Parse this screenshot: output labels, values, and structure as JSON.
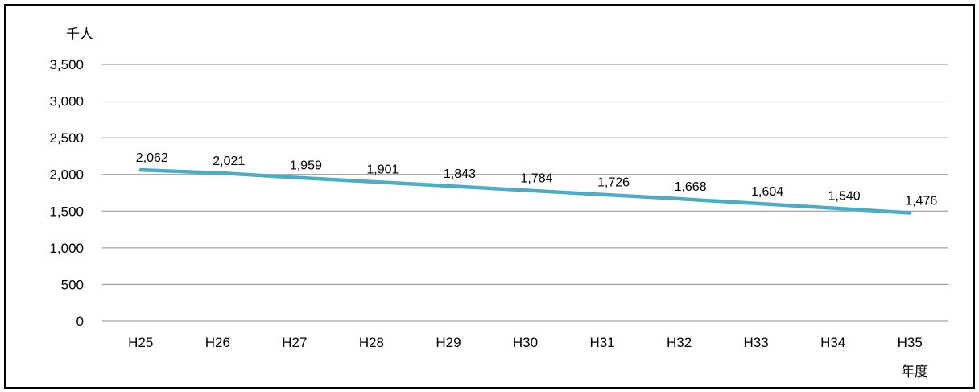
{
  "chart_data": {
    "type": "line",
    "categories": [
      "H25",
      "H26",
      "H27",
      "H28",
      "H29",
      "H30",
      "H31",
      "H32",
      "H33",
      "H34",
      "H35"
    ],
    "series": [
      {
        "values": [
          2062,
          2021,
          1959,
          1901,
          1843,
          1784,
          1726,
          1668,
          1604,
          1540,
          1476
        ],
        "data_labels": [
          "2,062",
          "2,021",
          "1,959",
          "1,901",
          "1,843",
          "1,784",
          "1,726",
          "1,668",
          "1,604",
          "1,540",
          "1,476"
        ],
        "color": "#4BACC6"
      }
    ],
    "ylim": [
      0,
      3500
    ],
    "y_ticks": [
      0,
      500,
      1000,
      1500,
      2000,
      2500,
      3000,
      3500
    ],
    "y_tick_labels": [
      "0",
      "500",
      "1,000",
      "1,500",
      "2,000",
      "2,500",
      "3,000",
      "3,500"
    ],
    "y_unit": "千人",
    "x_unit": "年度",
    "grid": true,
    "legend": "none"
  }
}
